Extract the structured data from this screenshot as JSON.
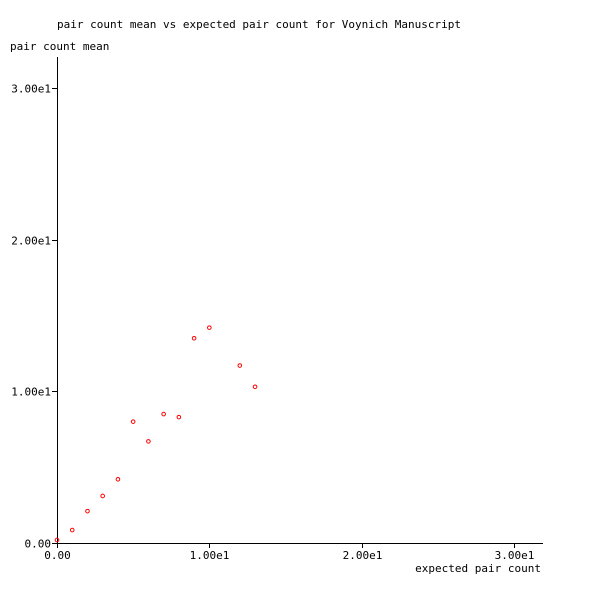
{
  "chart_data": {
    "type": "scatter",
    "title": "pair count mean vs expected pair count for Voynich Manuscript",
    "xlabel": "expected pair count",
    "ylabel": "pair count mean",
    "xlim": [
      0,
      32
    ],
    "ylim": [
      0,
      32
    ],
    "x_ticks": [
      {
        "value": 0,
        "label": "0.00"
      },
      {
        "value": 10,
        "label": "1.00e1"
      },
      {
        "value": 20,
        "label": "2.00e1"
      },
      {
        "value": 30,
        "label": "3.00e1"
      }
    ],
    "y_ticks": [
      {
        "value": 0,
        "label": "0.00"
      },
      {
        "value": 10,
        "label": "1.00e1"
      },
      {
        "value": 20,
        "label": "2.00e1"
      },
      {
        "value": 30,
        "label": "3.00e1"
      }
    ],
    "grid": false,
    "marker_color": "#ff0000",
    "points": [
      {
        "x": 0,
        "y": 0.2
      },
      {
        "x": 1,
        "y": 0.85
      },
      {
        "x": 2,
        "y": 2.1
      },
      {
        "x": 3,
        "y": 3.1
      },
      {
        "x": 4,
        "y": 4.2
      },
      {
        "x": 5,
        "y": 8.0
      },
      {
        "x": 6,
        "y": 6.7
      },
      {
        "x": 7,
        "y": 8.5
      },
      {
        "x": 8,
        "y": 8.3
      },
      {
        "x": 9,
        "y": 13.5
      },
      {
        "x": 10,
        "y": 14.2
      },
      {
        "x": 12,
        "y": 11.7
      },
      {
        "x": 13,
        "y": 10.3
      }
    ]
  }
}
